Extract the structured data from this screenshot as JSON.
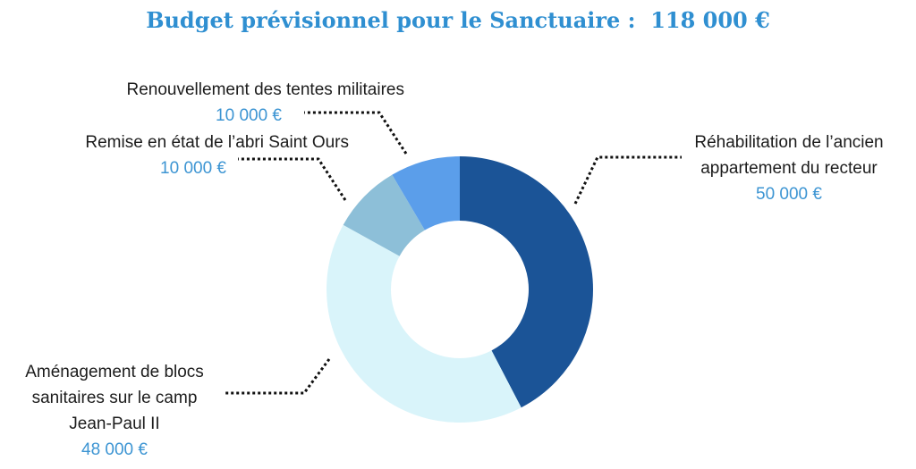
{
  "title": "Budget prévisionnel pour le Sanctuaire :  118 000 €",
  "chart_data": {
    "type": "pie",
    "donut": true,
    "title": "Budget prévisionnel pour le Sanctuaire :  118 000 €",
    "total": 118000,
    "unit": "€",
    "slices": [
      {
        "label_lines": [
          "Réhabilitation de l’ancien",
          "appartement du recteur"
        ],
        "value": 50000,
        "value_label": "50 000 €",
        "color": "#1b5497"
      },
      {
        "label_lines": [
          "Aménagement de blocs",
          "sanitaires sur le camp",
          "Jean-Paul  II"
        ],
        "value": 48000,
        "value_label": "48 000 €",
        "color": "#d9f4fa"
      },
      {
        "label_lines": [
          "Remise en état de l’abri Saint Ours"
        ],
        "value": 10000,
        "value_label": "10 000 €",
        "color": "#8dbfd8"
      },
      {
        "label_lines": [
          "Renouvellement des tentes militaires"
        ],
        "value": 10000,
        "value_label": "10 000 €",
        "color": "#5b9eea"
      }
    ]
  }
}
